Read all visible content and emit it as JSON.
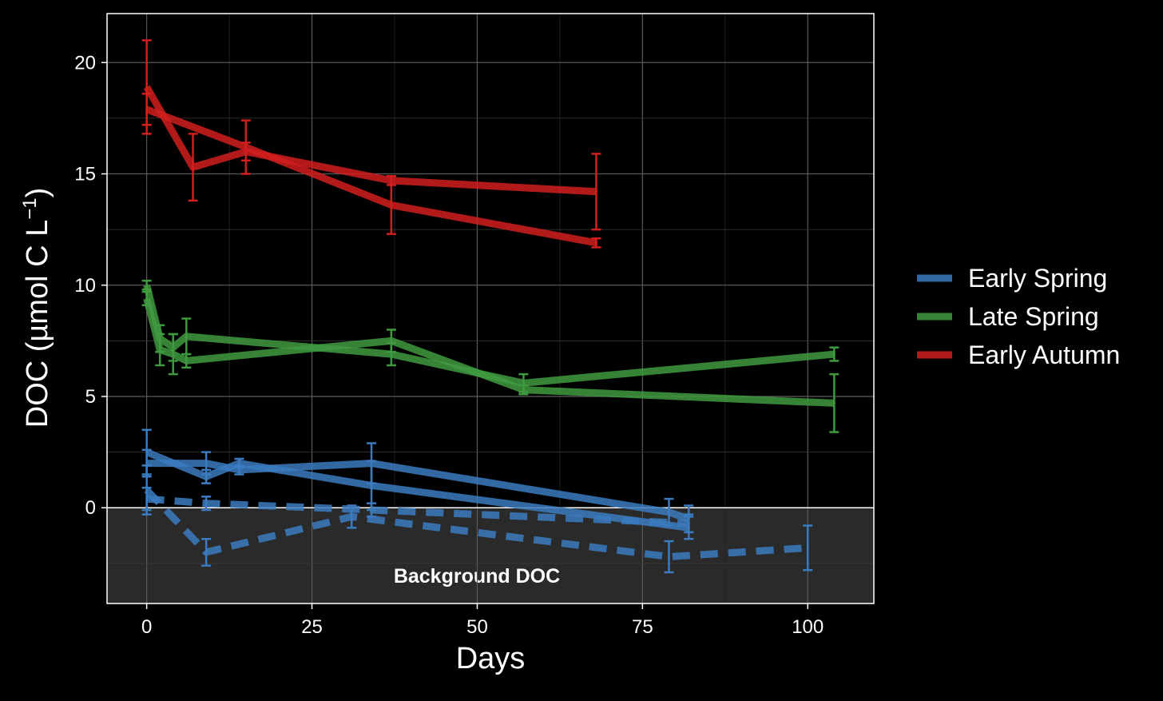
{
  "chart_data": {
    "type": "line",
    "xlabel": "Days",
    "ylabel": "DOC (µmol C L",
    "ylabel_sup": "−1",
    "ylabel_close": ")",
    "xlim": [
      -6,
      110
    ],
    "ylim": [
      -4.3,
      22.2
    ],
    "xticks": [
      0,
      25,
      50,
      75,
      100
    ],
    "yticks": [
      0,
      5,
      10,
      15,
      20
    ],
    "grid": true,
    "legend_position": "right",
    "background_band": {
      "label": "Background DOC",
      "y_from": -4.3,
      "y_to": 0
    },
    "legend": [
      {
        "name": "Early Spring",
        "color": "#3b7bbf"
      },
      {
        "name": "Late Spring",
        "color": "#3f9a3f"
      },
      {
        "name": "Early Autumn",
        "color": "#d11f1f"
      }
    ],
    "series": [
      {
        "group": "Early Autumn",
        "color": "#d11f1f",
        "dashed": false,
        "points": [
          {
            "x": 0,
            "y": 18.9,
            "err": 2.1
          },
          {
            "x": 7,
            "y": 15.3,
            "err": 1.5
          },
          {
            "x": 15,
            "y": 16.0,
            "err": 0.4
          },
          {
            "x": 37,
            "y": 14.7,
            "err": 0.2
          },
          {
            "x": 68,
            "y": 14.2,
            "err": 1.7
          }
        ]
      },
      {
        "group": "Early Autumn",
        "color": "#d11f1f",
        "dashed": false,
        "points": [
          {
            "x": 0,
            "y": 17.9,
            "err": 0.7
          },
          {
            "x": 15,
            "y": 16.2,
            "err": 1.2
          },
          {
            "x": 37,
            "y": 13.6,
            "err": 1.3
          },
          {
            "x": 68,
            "y": 11.9,
            "err": 0.2
          }
        ]
      },
      {
        "group": "Late Spring",
        "color": "#3f9a3f",
        "dashed": false,
        "points": [
          {
            "x": 0,
            "y": 10.0,
            "err": 0.2
          },
          {
            "x": 2,
            "y": 7.6,
            "err": 0.6
          },
          {
            "x": 4,
            "y": 7.2,
            "err": 0.6
          },
          {
            "x": 6,
            "y": 7.7,
            "err": 0.8
          },
          {
            "x": 37,
            "y": 6.9,
            "err": 0.5
          },
          {
            "x": 57,
            "y": 5.6,
            "err": 0.4
          },
          {
            "x": 104,
            "y": 6.9,
            "err": 0.3
          }
        ]
      },
      {
        "group": "Late Spring",
        "color": "#3f9a3f",
        "dashed": false,
        "points": [
          {
            "x": 0,
            "y": 9.4,
            "err": 0.3
          },
          {
            "x": 2,
            "y": 7.1,
            "err": 0.7
          },
          {
            "x": 4,
            "y": 6.9,
            "err": 0.9
          },
          {
            "x": 6,
            "y": 6.6,
            "err": 0.3
          },
          {
            "x": 37,
            "y": 7.5,
            "err": 0.5
          },
          {
            "x": 57,
            "y": 5.3,
            "err": 0.2
          },
          {
            "x": 104,
            "y": 4.7,
            "err": 1.3
          }
        ]
      },
      {
        "group": "Early Spring",
        "color": "#3b7bbf",
        "dashed": false,
        "points": [
          {
            "x": 0,
            "y": 2.5,
            "err": 1.0
          },
          {
            "x": 9,
            "y": 1.4,
            "err": 0.3
          },
          {
            "x": 14,
            "y": 2.0,
            "err": 0.2
          },
          {
            "x": 34,
            "y": 1.0,
            "err": 1.1
          },
          {
            "x": 82,
            "y": -0.9,
            "err": 0.5
          }
        ]
      },
      {
        "group": "Early Spring",
        "color": "#3b7bbf",
        "dashed": false,
        "points": [
          {
            "x": 0,
            "y": 2.0,
            "err": 0.6
          },
          {
            "x": 9,
            "y": 2.0,
            "err": 0.5
          },
          {
            "x": 14,
            "y": 1.7,
            "err": 0.2
          },
          {
            "x": 34,
            "y": 2.0,
            "err": 0.9
          },
          {
            "x": 79,
            "y": -0.2,
            "err": 0.6
          },
          {
            "x": 82,
            "y": -0.5,
            "err": 0.6
          }
        ]
      },
      {
        "group": "Early Spring",
        "color": "#3b7bbf",
        "dashed": true,
        "points": [
          {
            "x": 0,
            "y": 0.8,
            "err": 1.1
          },
          {
            "x": 9,
            "y": -2.0,
            "err": 0.6
          },
          {
            "x": 31,
            "y": -0.4,
            "err": 0.5
          },
          {
            "x": 79,
            "y": -2.2,
            "err": 0.7
          },
          {
            "x": 100,
            "y": -1.8,
            "err": 1.0
          }
        ]
      },
      {
        "group": "Early Spring",
        "color": "#3b7bbf",
        "dashed": true,
        "points": [
          {
            "x": 0,
            "y": 0.4,
            "err": 0.5
          },
          {
            "x": 9,
            "y": 0.2,
            "err": 0.3
          },
          {
            "x": 34,
            "y": -0.1,
            "err": 0.3
          },
          {
            "x": 82,
            "y": -0.7,
            "err": 0.4
          }
        ]
      }
    ]
  }
}
